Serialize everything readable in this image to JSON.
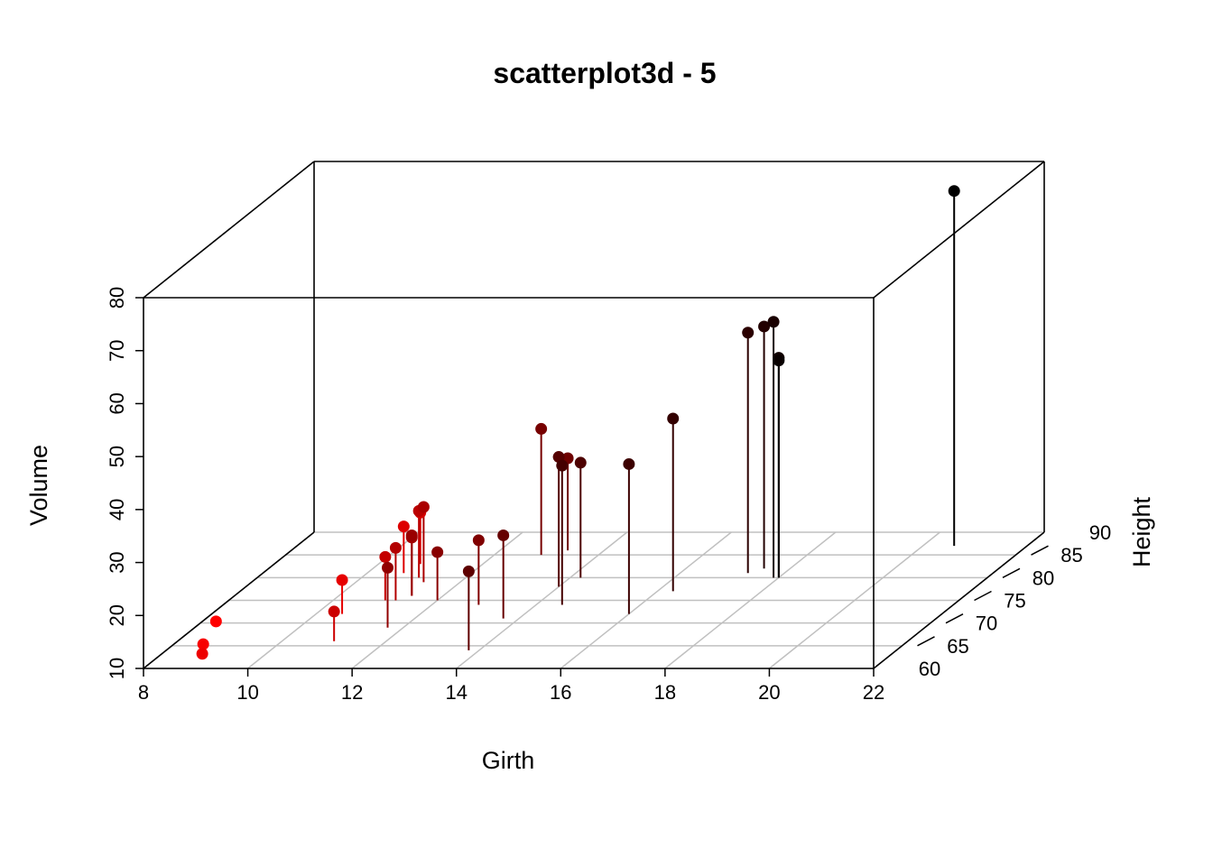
{
  "chart_data": {
    "type": "scatter",
    "title": "scatterplot3d - 5",
    "xlabel": "Girth",
    "ylabel": "Height",
    "zlabel": "Volume",
    "xlim": [
      8,
      22
    ],
    "ylim": [
      60,
      90
    ],
    "zlim": [
      10,
      80
    ],
    "x_ticks": [
      "8",
      "10",
      "12",
      "14",
      "16",
      "18",
      "20",
      "22"
    ],
    "y_ticks": [
      "60",
      "65",
      "70",
      "75",
      "80",
      "85",
      "90"
    ],
    "z_ticks": [
      "10",
      "20",
      "30",
      "40",
      "50",
      "60",
      "70",
      "80"
    ],
    "grid": true,
    "type_h_lines": true,
    "color_low": "#FF0000",
    "color_high": "#000000",
    "points": [
      {
        "girth": 8.3,
        "height": 70,
        "volume": 10.3
      },
      {
        "girth": 8.6,
        "height": 65,
        "volume": 10.3
      },
      {
        "girth": 8.8,
        "height": 63,
        "volume": 10.2
      },
      {
        "girth": 10.5,
        "height": 72,
        "volume": 16.4
      },
      {
        "girth": 10.7,
        "height": 81,
        "volume": 18.8
      },
      {
        "girth": 10.8,
        "height": 83,
        "volume": 19.7
      },
      {
        "girth": 11.0,
        "height": 66,
        "volume": 15.6
      },
      {
        "girth": 11.0,
        "height": 75,
        "volume": 18.2
      },
      {
        "girth": 11.1,
        "height": 80,
        "volume": 22.6
      },
      {
        "girth": 11.2,
        "height": 75,
        "volume": 19.9
      },
      {
        "girth": 11.3,
        "height": 79,
        "volume": 24.2
      },
      {
        "girth": 11.4,
        "height": 76,
        "volume": 21.0
      },
      {
        "girth": 11.4,
        "height": 76,
        "volume": 21.4
      },
      {
        "girth": 11.7,
        "height": 69,
        "volume": 21.3
      },
      {
        "girth": 12.0,
        "height": 75,
        "volume": 19.1
      },
      {
        "girth": 12.9,
        "height": 74,
        "volume": 22.2
      },
      {
        "girth": 12.9,
        "height": 85,
        "volume": 33.8
      },
      {
        "girth": 13.3,
        "height": 86,
        "volume": 27.4
      },
      {
        "girth": 13.7,
        "height": 71,
        "volume": 25.7
      },
      {
        "girth": 13.8,
        "height": 64,
        "volume": 24.9
      },
      {
        "girth": 14.0,
        "height": 78,
        "volume": 34.5
      },
      {
        "girth": 14.2,
        "height": 80,
        "volume": 31.7
      },
      {
        "girth": 14.5,
        "height": 74,
        "volume": 36.3
      },
      {
        "girth": 16.0,
        "height": 72,
        "volume": 38.3
      },
      {
        "girth": 16.3,
        "height": 77,
        "volume": 42.6
      },
      {
        "girth": 17.3,
        "height": 81,
        "volume": 55.4
      },
      {
        "girth": 17.5,
        "height": 82,
        "volume": 55.7
      },
      {
        "girth": 17.9,
        "height": 80,
        "volume": 58.3
      },
      {
        "girth": 18.0,
        "height": 80,
        "volume": 51.5
      },
      {
        "girth": 18.0,
        "height": 80,
        "volume": 51.0
      },
      {
        "girth": 20.6,
        "height": 87,
        "volume": 77.0
      }
    ]
  }
}
